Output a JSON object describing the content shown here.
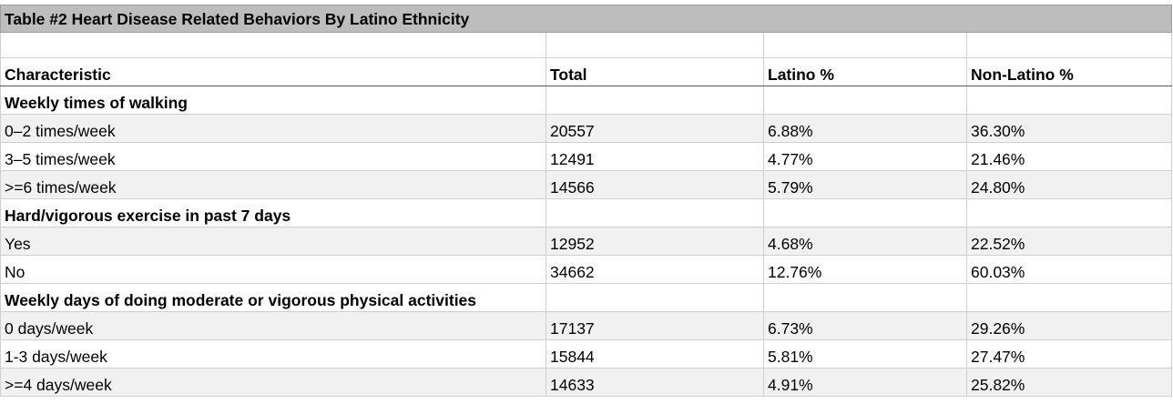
{
  "table": {
    "title": "Table #2 Heart Disease Related Behaviors By Latino Ethnicity",
    "headers": [
      "Characteristic",
      "Total",
      "Latino %",
      "Non-Latino %"
    ],
    "sections": [
      {
        "label": "Weekly times of walking",
        "rows": [
          [
            "0–2 times/week",
            "20557",
            "6.88%",
            "36.30%"
          ],
          [
            "3–5 times/week",
            "12491",
            "4.77%",
            "21.46%"
          ],
          [
            ">=6 times/week",
            "14566",
            "5.79%",
            "24.80%"
          ]
        ]
      },
      {
        "label": "Hard/vigorous exercise in past 7 days",
        "rows": [
          [
            "Yes",
            "12952",
            "4.68%",
            "22.52%"
          ],
          [
            "No",
            "34662",
            "12.76%",
            "60.03%"
          ]
        ]
      },
      {
        "label": "Weekly days of doing moderate or vigorous physical activities",
        "rows": [
          [
            "0 days/week",
            "17137",
            "6.73%",
            "29.26%"
          ],
          [
            "1-3 days/week",
            "15844",
            "5.81%",
            "27.47%"
          ],
          [
            ">=4 days/week",
            "14633",
            "4.91%",
            "25.82%"
          ]
        ]
      }
    ]
  }
}
